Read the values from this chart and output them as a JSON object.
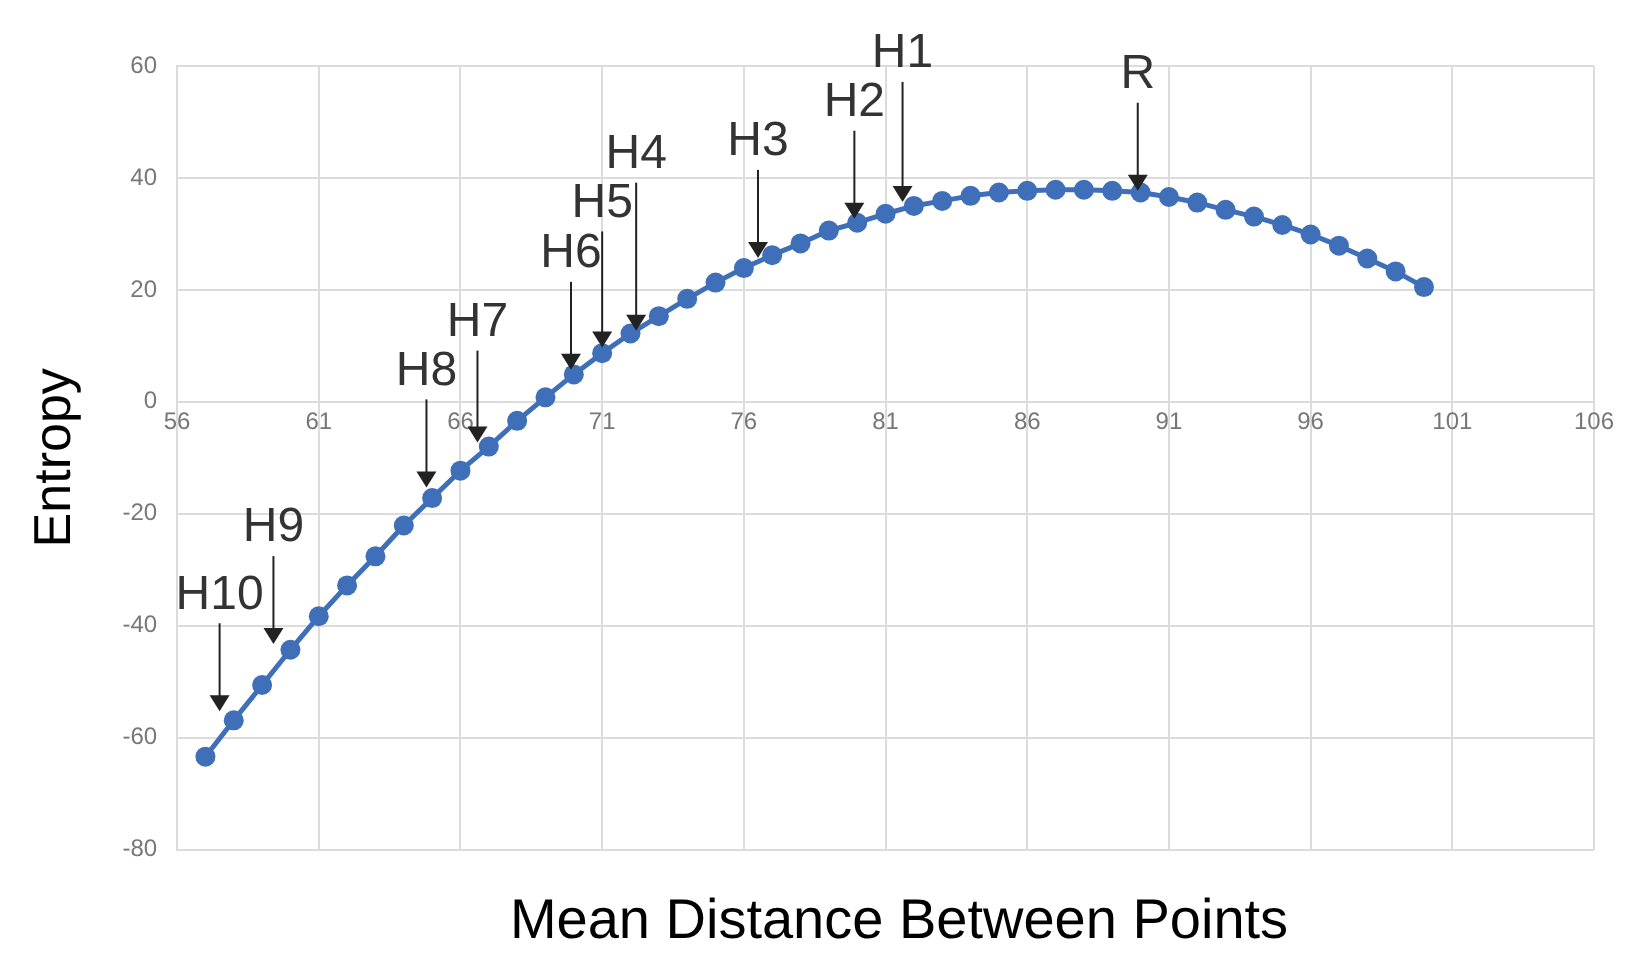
{
  "chart_data": {
    "type": "line",
    "xlabel": "Mean Distance Between Points",
    "ylabel": "Entropy",
    "xlim": [
      56,
      106
    ],
    "xticks": [
      56,
      61,
      66,
      71,
      76,
      81,
      86,
      91,
      96,
      101,
      106
    ],
    "ylim": [
      -80,
      60
    ],
    "yticks": [
      -80,
      -60,
      -40,
      -20,
      0,
      20,
      40,
      60
    ],
    "grid": true,
    "marker": "circle",
    "line_style": "solid",
    "series": [
      {
        "color": "#3e6fb8",
        "x": [
          57,
          58,
          59,
          60,
          61,
          62,
          63,
          64,
          65,
          66,
          67,
          68,
          69,
          70,
          71,
          72,
          73,
          74,
          75,
          76,
          77,
          78,
          79,
          80,
          81,
          82,
          83,
          84,
          85,
          86,
          87,
          88,
          89,
          90,
          91,
          92,
          93,
          94,
          95,
          96,
          97,
          98,
          99,
          100
        ],
        "values": [
          -63.4,
          -56.9,
          -50.6,
          -44.3,
          -38.3,
          -32.8,
          -27.6,
          -22.1,
          -17.2,
          -12.3,
          -8,
          -3.4,
          0.8,
          4.9,
          8.7,
          12.2,
          15.3,
          18.4,
          21.3,
          23.9,
          26.2,
          28.3,
          30.6,
          32,
          33.6,
          35,
          35.9,
          36.8,
          37.4,
          37.7,
          37.9,
          37.9,
          37.7,
          37.4,
          36.6,
          35.6,
          34.3,
          33.1,
          31.6,
          29.9,
          27.9,
          25.6,
          23.3,
          20.5
        ]
      }
    ],
    "annotations": [
      {
        "text": "H10",
        "x": 57.5,
        "y": -56
      },
      {
        "text": "H9",
        "x": 59.4,
        "y": -44
      },
      {
        "text": "H8",
        "x": 64.8,
        "y": -16
      },
      {
        "text": "H7",
        "x": 66.6,
        "y": -8
      },
      {
        "text": "H6",
        "x": 69.9,
        "y": 5
      },
      {
        "text": "H5",
        "x": 71,
        "y": 9
      },
      {
        "text": "H4",
        "x": 72.2,
        "y": 12
      },
      {
        "text": "H3",
        "x": 76.5,
        "y": 25
      },
      {
        "text": "H2",
        "x": 79.9,
        "y": 32
      },
      {
        "text": "H1",
        "x": 81.6,
        "y": 35
      },
      {
        "text": "R",
        "x": 89.9,
        "y": 37
      }
    ]
  }
}
